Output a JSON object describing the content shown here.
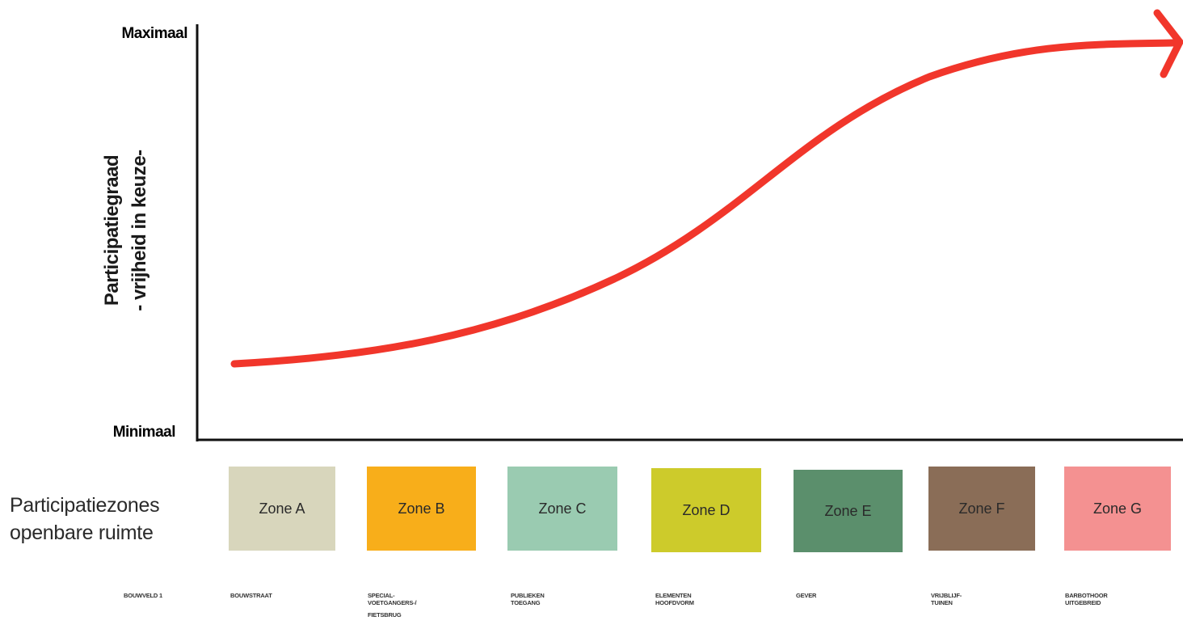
{
  "y_axis": {
    "max_label": "Maximaal",
    "min_label": "Minimaal",
    "title_line1": "Participatiegraad",
    "title_line2": "- vrijheid in keuze-"
  },
  "curve": {
    "color": "#f1362b",
    "axis_color": "#111111"
  },
  "zones_title": {
    "line1": "Participatiezones",
    "line2": "openbare ruimte"
  },
  "zones": [
    {
      "label": "Zone A",
      "color": "#d8d6bc"
    },
    {
      "label": "Zone B",
      "color": "#f8ae1a"
    },
    {
      "label": "Zone C",
      "color": "#9acbb1"
    },
    {
      "label": "Zone D",
      "color": "#cdcb2b"
    },
    {
      "label": "Zone E",
      "color": "#5b8f6c"
    },
    {
      "label": "Zone F",
      "color": "#8a6d57"
    },
    {
      "label": "Zone G",
      "color": "#f49191"
    }
  ],
  "small_labels": [
    {
      "lines": [
        "BOUWVELD 1"
      ]
    },
    {
      "lines": [
        "BOUWSTRAAT"
      ]
    },
    {
      "lines": [
        "SPECIAL-",
        "VOETGANGERS-/",
        "FIETSBRUG"
      ]
    },
    {
      "lines": [
        "PUBLIEKEN",
        "TOEGANG"
      ]
    },
    {
      "lines": [
        "ELEMENTEN",
        "HOOFDVORM"
      ]
    },
    {
      "lines": [
        "GEVER"
      ]
    },
    {
      "lines": [
        "VRIJBLIJF-",
        "TUINEN"
      ]
    },
    {
      "lines": [
        "BARBOTHOOR",
        "UITGEBREID"
      ]
    }
  ]
}
